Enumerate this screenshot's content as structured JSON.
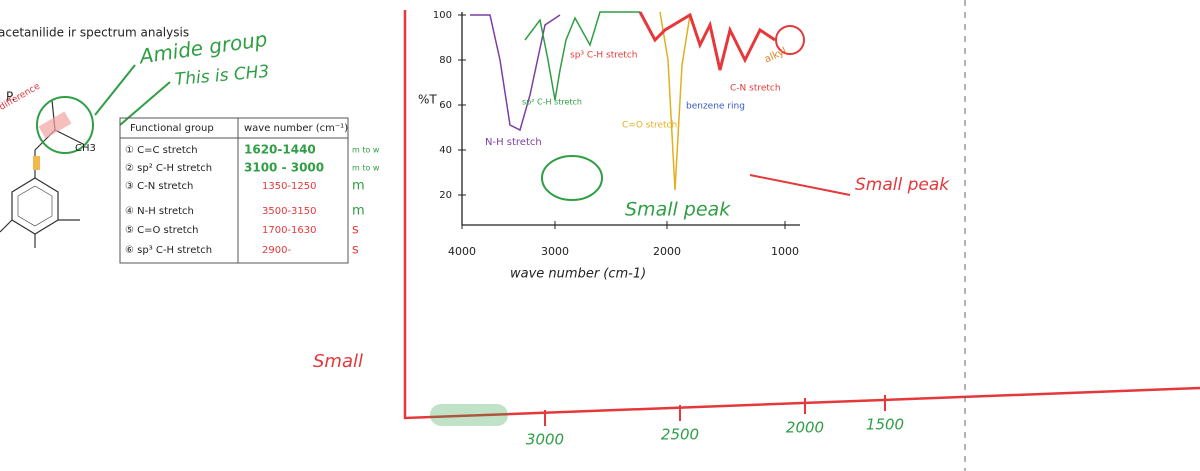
{
  "header": {
    "title": "acetanilide ir spectrum analysis"
  },
  "annotations": {
    "amide": "Amide group",
    "ch3": "This is CH3",
    "small_left": "Small",
    "diff": "difference",
    "ch3_label": "CH3",
    "p": "P."
  },
  "table": {
    "columns": [
      "Functional group",
      "wave number (cm⁻¹)"
    ],
    "rows": [
      [
        "① C=C stretch",
        "1620-1440",
        "m to w"
      ],
      [
        "② sp² C-H stretch",
        "3100 - 3000",
        "m to w"
      ],
      [
        "③ C-N stretch",
        "1350-1250",
        "m"
      ],
      [
        "④ N-H stretch",
        "3500-3150",
        "m"
      ],
      [
        "⑤ C=O stretch",
        "1700-1630",
        "s"
      ],
      [
        "⑥ sp³ C-H stretch",
        "2900-",
        "s"
      ]
    ]
  },
  "spectrum": {
    "y_label": "%T",
    "y_ticks": [
      "100",
      "80",
      "60",
      "40",
      "20"
    ],
    "x_ticks": [
      "4000",
      "3000",
      "2000",
      "1000"
    ],
    "x_label": "wave number (cm-1)",
    "labels": [
      "N-H stretch",
      "sp² C-H stretch",
      "sp³ C-H stretch",
      "C=O stretch",
      "benzene ring",
      "C-N stretch",
      "alkyl",
      "Small peak",
      "Small peak"
    ]
  },
  "bottom_axis": {
    "ticks": [
      "3000",
      "2500",
      "2000",
      "1500"
    ]
  }
}
